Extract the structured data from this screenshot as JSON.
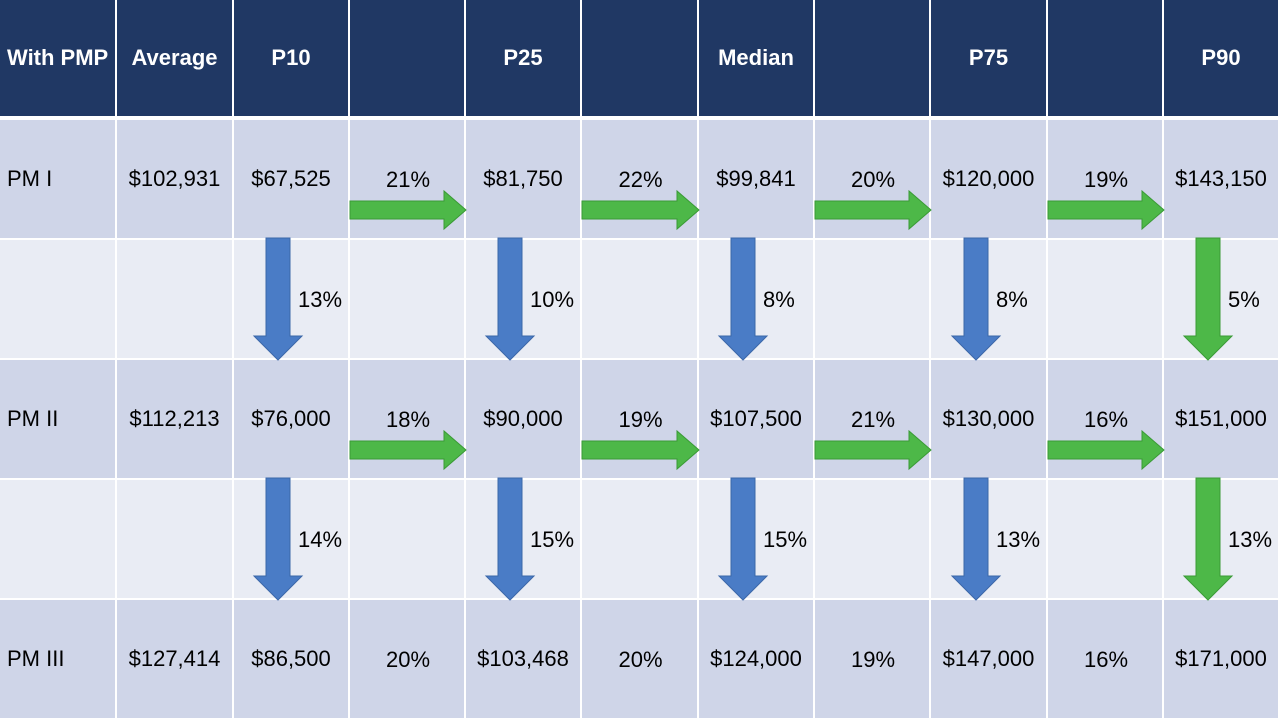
{
  "header": [
    "With PMP",
    "Average",
    "P10",
    "",
    "P25",
    "",
    "Median",
    "",
    "P75",
    "",
    "P90"
  ],
  "rows": [
    {
      "label": "PM I",
      "average": "$102,931",
      "values": [
        "$67,525",
        "$81,750",
        "$99,841",
        "$120,000",
        "$143,150"
      ],
      "step_pcts": [
        "21%",
        "22%",
        "20%",
        "19%"
      ]
    },
    {
      "label": "PM II",
      "average": "$112,213",
      "values": [
        "$76,000",
        "$90,000",
        "$107,500",
        "$130,000",
        "$151,000"
      ],
      "step_pcts": [
        "18%",
        "19%",
        "21%",
        "16%"
      ]
    },
    {
      "label": "PM III",
      "average": "$127,414",
      "values": [
        "$86,500",
        "$103,468",
        "$124,000",
        "$147,000",
        "$171,000"
      ],
      "step_pcts": [
        "20%",
        "20%",
        "19%",
        "16%"
      ]
    }
  ],
  "level_changes": [
    [
      "13%",
      "10%",
      "8%",
      "8%",
      "5%"
    ],
    [
      "14%",
      "15%",
      "15%",
      "13%",
      "13%"
    ]
  ],
  "colors": {
    "header_bg": "#203864",
    "band_dark": "#cfd5e8",
    "band_light": "#e9ecf4",
    "down_arrow": "#4a7cc6",
    "down_arrow_last": "#4db848",
    "right_arrow": "#4db848"
  }
}
